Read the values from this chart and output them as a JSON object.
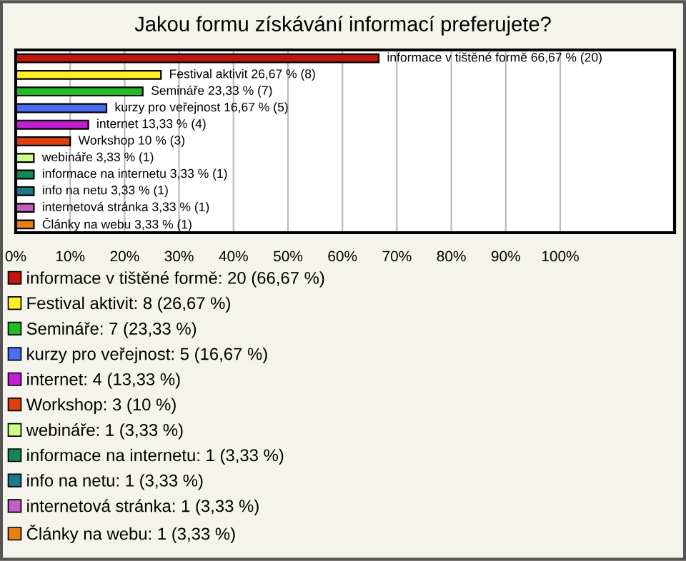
{
  "chart_data": {
    "type": "bar",
    "orientation": "horizontal",
    "title": "Jakou formu získávání informací preferujete?",
    "categories": [
      null,
      null,
      null,
      null,
      null,
      null,
      null,
      null,
      null,
      null,
      null
    ],
    "series": [
      {
        "name": "informace v tištěné formě: 20 (66,67 %)",
        "color": "#c0140c",
        "values": [
          66.67,
          null,
          null,
          null,
          null,
          null,
          null,
          null,
          null,
          null,
          null
        ],
        "value_labels": [
          "informace v tištěné formě 66,67 % (20)",
          null,
          null,
          null,
          null,
          null,
          null,
          null,
          null,
          null,
          null
        ]
      },
      {
        "name": "Festival aktivit: 8 (26,67 %)",
        "color": "#ffee22",
        "values": [
          null,
          26.67,
          null,
          null,
          null,
          null,
          null,
          null,
          null,
          null,
          null
        ],
        "value_labels": [
          null,
          "Festival aktivit 26,67 % (8)",
          null,
          null,
          null,
          null,
          null,
          null,
          null,
          null,
          null
        ]
      },
      {
        "name": "Semináře: 7 (23,33 %)",
        "color": "#22bb22",
        "values": [
          null,
          null,
          23.33,
          null,
          null,
          null,
          null,
          null,
          null,
          null,
          null
        ],
        "value_labels": [
          null,
          null,
          "Semináře 23,33 % (7)",
          null,
          null,
          null,
          null,
          null,
          null,
          null,
          null
        ]
      },
      {
        "name": "kurzy pro veřejnost: 5 (16,67 %)",
        "color": "#4a6ef0",
        "values": [
          null,
          null,
          null,
          16.67,
          null,
          null,
          null,
          null,
          null,
          null,
          null
        ],
        "value_labels": [
          null,
          null,
          null,
          "kurzy pro veřejnost 16,67 % (5)",
          null,
          null,
          null,
          null,
          null,
          null,
          null
        ]
      },
      {
        "name": "internet: 4 (13,33 %)",
        "color": "#c020d0",
        "values": [
          null,
          null,
          null,
          null,
          13.33,
          null,
          null,
          null,
          null,
          null,
          null
        ],
        "value_labels": [
          null,
          null,
          null,
          null,
          "internet 13,33 % (4)",
          null,
          null,
          null,
          null,
          null,
          null
        ]
      },
      {
        "name": "Workshop: 3 (10 %)",
        "color": "#e04010",
        "values": [
          null,
          null,
          null,
          null,
          null,
          10,
          null,
          null,
          null,
          null,
          null
        ],
        "value_labels": [
          null,
          null,
          null,
          null,
          null,
          "Workshop 10 % (3)",
          null,
          null,
          null,
          null,
          null
        ]
      },
      {
        "name": "webináře: 1 (3,33 %)",
        "color": "#ccff88",
        "values": [
          null,
          null,
          null,
          null,
          null,
          null,
          3.33,
          null,
          null,
          null,
          null
        ],
        "value_labels": [
          null,
          null,
          null,
          null,
          null,
          null,
          "webináře 3,33 % (1)",
          null,
          null,
          null,
          null
        ]
      },
      {
        "name": "informace na internetu: 1 (3,33 %)",
        "color": "#108858",
        "values": [
          null,
          null,
          null,
          null,
          null,
          null,
          null,
          3.33,
          null,
          null,
          null
        ],
        "value_labels": [
          null,
          null,
          null,
          null,
          null,
          null,
          null,
          "informace na internetu 3,33 % (1)",
          null,
          null,
          null
        ]
      },
      {
        "name": "info na netu: 1 (3,33 %)",
        "color": "#1a7a8a",
        "values": [
          null,
          null,
          null,
          null,
          null,
          null,
          null,
          null,
          3.33,
          null,
          null
        ],
        "value_labels": [
          null,
          null,
          null,
          null,
          null,
          null,
          null,
          null,
          "info na netu 3,33 % (1)",
          null,
          null
        ]
      },
      {
        "name": "internetová stránka: 1 (3,33 %)",
        "color": "#c060c0",
        "values": [
          null,
          null,
          null,
          null,
          null,
          null,
          null,
          null,
          null,
          3.33,
          null
        ],
        "value_labels": [
          null,
          null,
          null,
          null,
          null,
          null,
          null,
          null,
          null,
          "internetová stránka 3,33 % (1)",
          null
        ]
      },
      {
        "name": "Články na webu: 1 (3,33 %)",
        "color": "#e88010",
        "values": [
          null,
          null,
          null,
          null,
          null,
          null,
          null,
          null,
          null,
          null,
          3.33
        ],
        "value_labels": [
          null,
          null,
          null,
          null,
          null,
          null,
          null,
          null,
          null,
          null,
          "Články na webu 3,33 % (1)"
        ]
      }
    ],
    "xlim": [
      0,
      121
    ],
    "xticks": [
      {
        "value": 0,
        "label": "0%"
      },
      {
        "value": 10,
        "label": "10%"
      },
      {
        "value": 20,
        "label": "20%"
      },
      {
        "value": 30,
        "label": "30%"
      },
      {
        "value": 40,
        "label": "40%"
      },
      {
        "value": 50,
        "label": "50%"
      },
      {
        "value": 60,
        "label": "60%"
      },
      {
        "value": 70,
        "label": "70%"
      },
      {
        "value": 80,
        "label": "80%"
      },
      {
        "value": 90,
        "label": "90%"
      },
      {
        "value": 100,
        "label": "100%"
      }
    ],
    "grid": "x",
    "legend": "bottom"
  }
}
